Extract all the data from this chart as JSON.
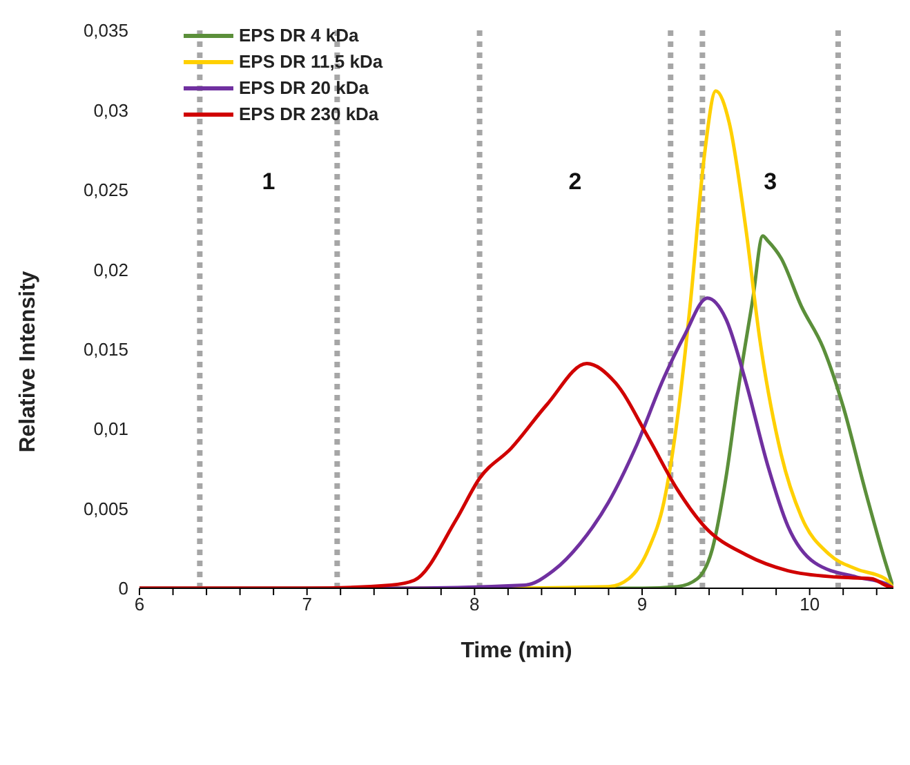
{
  "chart_data": {
    "type": "line",
    "xlabel": "Time (min)",
    "ylabel": "Relative Intensity",
    "xlim": [
      6,
      10.5
    ],
    "ylim": [
      0,
      0.035
    ],
    "xticks": [
      6,
      {
        "value": 6.2,
        "label": null
      },
      {
        "value": 6.4,
        "label": null
      },
      {
        "value": 6.6,
        "label": null
      },
      {
        "value": 6.8,
        "label": null
      },
      7,
      {
        "value": 7.2,
        "label": null
      },
      {
        "value": 7.4,
        "label": null
      },
      {
        "value": 7.6,
        "label": null
      },
      {
        "value": 7.8,
        "label": null
      },
      8,
      {
        "value": 8.2,
        "label": null
      },
      {
        "value": 8.4,
        "label": null
      },
      {
        "value": 8.6,
        "label": null
      },
      {
        "value": 8.8,
        "label": null
      },
      9,
      {
        "value": 9.2,
        "label": null
      },
      {
        "value": 9.4,
        "label": null
      },
      {
        "value": 9.6,
        "label": null
      },
      {
        "value": 9.8,
        "label": null
      },
      10,
      {
        "value": 10.2,
        "label": null
      },
      {
        "value": 10.4,
        "label": null
      }
    ],
    "yticks": [
      0,
      {
        "value": 0.005,
        "label": "0,005"
      },
      {
        "value": 0.01,
        "label": "0,01"
      },
      {
        "value": 0.015,
        "label": "0,015"
      },
      {
        "value": 0.02,
        "label": "0,02"
      },
      {
        "value": 0.025,
        "label": "0,025"
      },
      {
        "value": 0.03,
        "label": "0,03"
      },
      {
        "value": 0.035,
        "label": "0,035"
      }
    ],
    "grid": false,
    "legend": "top left",
    "marker": "none",
    "line_style": "solid",
    "series": [
      {
        "name": "EPS DR 4 kDa",
        "color": "#5b8f3a",
        "x": [
          6,
          8,
          9,
          9.21,
          9.33,
          9.42,
          9.5,
          9.58,
          9.66,
          9.72,
          9.75,
          9.83,
          9.95,
          10.08,
          10.2,
          10.33,
          10.45,
          10.5
        ],
        "values": [
          0,
          0,
          0,
          0.0001,
          0.0006,
          0.0025,
          0.0069,
          0.0129,
          0.0181,
          0.0221,
          0.0218,
          0.0207,
          0.0177,
          0.0151,
          0.0114,
          0.0062,
          0.0017,
          0
        ]
      },
      {
        "name": "EPS DR 11,5 kDa",
        "color": "#ffd000",
        "x": [
          6,
          8,
          8.8,
          8.92,
          9.04,
          9.13,
          9.21,
          9.29,
          9.37,
          9.44,
          9.52,
          9.62,
          9.7,
          9.83,
          9.95,
          10.12,
          10.28,
          10.45,
          10.5
        ],
        "values": [
          0,
          0,
          0.0001,
          0.0006,
          0.0025,
          0.0054,
          0.0106,
          0.0181,
          0.027,
          0.0312,
          0.0292,
          0.0225,
          0.0158,
          0.0084,
          0.0045,
          0.0021,
          0.0012,
          0.0006,
          0
        ]
      },
      {
        "name": "EPS DR 20 kDa",
        "color": "#7030a0",
        "x": [
          6,
          7.5,
          8.3,
          8.47,
          8.63,
          8.8,
          8.96,
          9.13,
          9.25,
          9.39,
          9.5,
          9.62,
          9.75,
          9.87,
          10.03,
          10.28,
          10.45,
          10.5
        ],
        "values": [
          0,
          0,
          0.0002,
          0.0011,
          0.0028,
          0.0054,
          0.0088,
          0.0132,
          0.0158,
          0.0182,
          0.0169,
          0.0129,
          0.0077,
          0.0039,
          0.0016,
          0.0007,
          0.0003,
          0
        ]
      },
      {
        "name": "EPS DR 230 kDa",
        "color": "#d00000",
        "x": [
          6,
          7,
          7.5,
          7.64,
          7.89,
          8.03,
          8.22,
          8.43,
          8.67,
          8.84,
          9.04,
          9.21,
          9.37,
          9.62,
          9.87,
          10.16,
          10.37,
          10.45,
          10.5
        ],
        "values": [
          0,
          0,
          0.0002,
          0.0005,
          0.0043,
          0.0069,
          0.0088,
          0.0115,
          0.0141,
          0.0129,
          0.0094,
          0.0062,
          0.0039,
          0.0021,
          0.0011,
          0.0007,
          0.0006,
          0.0002,
          0
        ]
      }
    ],
    "ref_lines": [
      {
        "axis": "x",
        "value": 6.36,
        "color": "#a6a6a6",
        "line_style": "dotted"
      },
      {
        "axis": "x",
        "value": 7.18,
        "color": "#a6a6a6",
        "line_style": "dotted"
      },
      {
        "axis": "x",
        "value": 8.03,
        "color": "#a6a6a6",
        "line_style": "dotted"
      },
      {
        "axis": "x",
        "value": 9.17,
        "color": "#a6a6a6",
        "line_style": "dotted"
      },
      {
        "axis": "x",
        "value": 9.36,
        "color": "#a6a6a6",
        "line_style": "dotted"
      },
      {
        "axis": "x",
        "value": 10.17,
        "color": "#a6a6a6",
        "line_style": "dotted"
      }
    ],
    "annotations": [
      "1",
      "2",
      "3"
    ]
  }
}
